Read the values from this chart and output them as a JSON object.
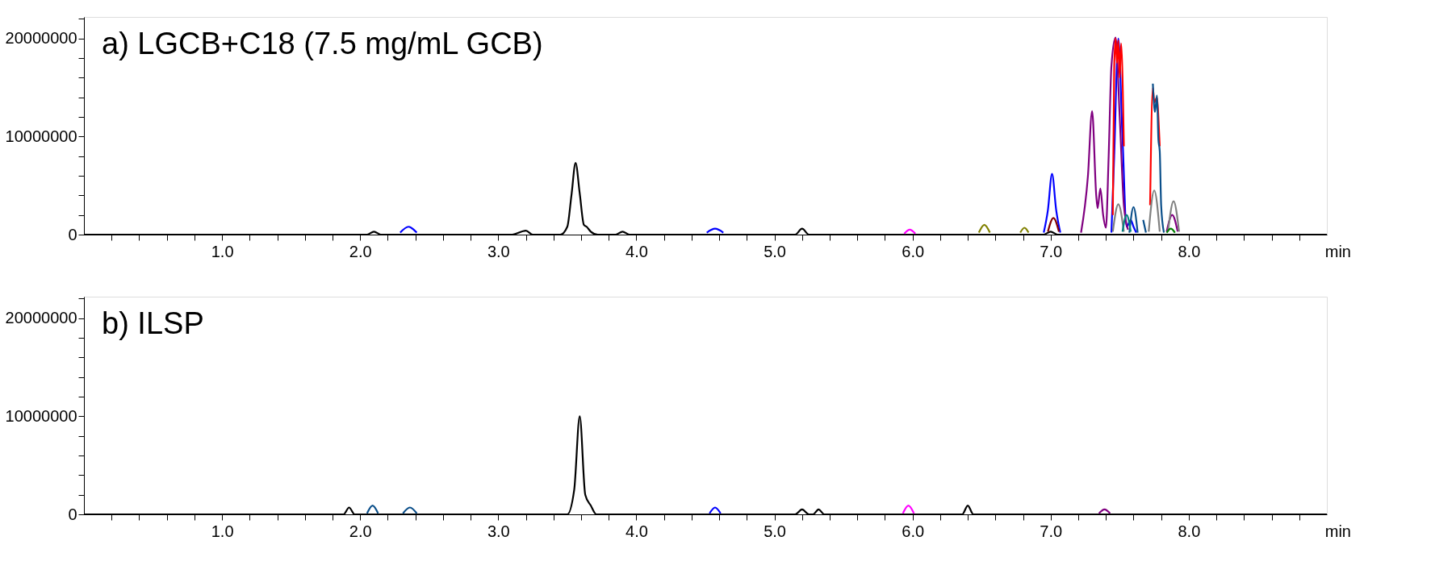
{
  "chart_data": [
    {
      "type": "line",
      "title": "a) LGCB+C18 (7.5 mg/mL GCB)",
      "xlabel": "min",
      "xlim": [
        0,
        9.0
      ],
      "ylim": [
        0,
        22200000
      ],
      "xticks": [
        {
          "value": 0.2,
          "label": null
        },
        {
          "value": 0.4,
          "label": null
        },
        {
          "value": 0.6,
          "label": null
        },
        {
          "value": 0.8,
          "label": null
        },
        {
          "value": 1.0,
          "label": "1.0"
        },
        {
          "value": 1.2,
          "label": null
        },
        {
          "value": 1.4,
          "label": null
        },
        {
          "value": 1.6,
          "label": null
        },
        {
          "value": 1.8,
          "label": null
        },
        {
          "value": 2.0,
          "label": "2.0"
        },
        {
          "value": 2.2,
          "label": null
        },
        {
          "value": 2.4,
          "label": null
        },
        {
          "value": 2.6,
          "label": null
        },
        {
          "value": 2.8,
          "label": null
        },
        {
          "value": 3.0,
          "label": "3.0"
        },
        {
          "value": 3.2,
          "label": null
        },
        {
          "value": 3.4,
          "label": null
        },
        {
          "value": 3.6,
          "label": null
        },
        {
          "value": 3.8,
          "label": null
        },
        {
          "value": 4.0,
          "label": "4.0"
        },
        {
          "value": 4.2,
          "label": null
        },
        {
          "value": 4.4,
          "label": null
        },
        {
          "value": 4.6,
          "label": null
        },
        {
          "value": 4.8,
          "label": null
        },
        {
          "value": 5.0,
          "label": "5.0"
        },
        {
          "value": 5.2,
          "label": null
        },
        {
          "value": 5.4,
          "label": null
        },
        {
          "value": 5.6,
          "label": null
        },
        {
          "value": 5.8,
          "label": null
        },
        {
          "value": 6.0,
          "label": "6.0"
        },
        {
          "value": 6.2,
          "label": null
        },
        {
          "value": 6.4,
          "label": null
        },
        {
          "value": 6.6,
          "label": null
        },
        {
          "value": 6.8,
          "label": null
        },
        {
          "value": 7.0,
          "label": "7.0"
        },
        {
          "value": 7.2,
          "label": null
        },
        {
          "value": 7.4,
          "label": null
        },
        {
          "value": 7.6,
          "label": null
        },
        {
          "value": 7.8,
          "label": null
        },
        {
          "value": 8.0,
          "label": "8.0"
        },
        {
          "value": 8.2,
          "label": null
        },
        {
          "value": 8.4,
          "label": null
        },
        {
          "value": 8.6,
          "label": null
        },
        {
          "value": 8.8,
          "label": null
        }
      ],
      "yticks": [
        0,
        {
          "value": 2000000,
          "label": null
        },
        {
          "value": 4000000,
          "label": null
        },
        {
          "value": 6000000,
          "label": null
        },
        {
          "value": 8000000,
          "label": null
        },
        10000000,
        {
          "value": 12000000,
          "label": null
        },
        {
          "value": 14000000,
          "label": null
        },
        {
          "value": 16000000,
          "label": null
        },
        {
          "value": 18000000,
          "label": null
        },
        20000000,
        {
          "value": 22000000,
          "label": null
        }
      ],
      "grid": false,
      "legend": false,
      "marker": "none",
      "line_style": "solid",
      "series": [
        {
          "color": "#000000",
          "x": [
            0,
            1.95,
            2.05,
            2.1,
            2.15,
            2.3,
            3.1,
            3.2,
            3.25,
            3.45,
            3.5,
            3.53,
            3.56,
            3.59,
            3.62,
            3.64,
            3.67,
            3.72,
            3.85,
            3.9,
            3.95,
            5.1,
            5.15,
            5.2,
            5.25,
            5.35,
            6.95,
            7.0,
            7.05,
            9.0
          ],
          "values": [
            0,
            0,
            0,
            300000,
            0,
            0,
            0,
            400000,
            0,
            0,
            800000,
            4000000,
            7300000,
            4200000,
            1000000,
            800000,
            300000,
            0,
            0,
            300000,
            0,
            0,
            0,
            600000,
            0,
            0,
            0,
            300000,
            0,
            0
          ]
        },
        {
          "color": "#0000ff",
          "x": [
            2.29,
            2.35,
            2.41,
            3.0,
            4.51,
            4.57,
            4.63,
            5.0,
            6.95,
            6.98,
            7.01,
            7.04,
            7.07,
            7.2,
            7.44,
            7.46,
            7.49,
            7.52,
            7.55,
            7.58,
            7.6,
            7.62
          ],
          "values": [
            200000,
            800000,
            200000,
            null,
            200000,
            600000,
            200000,
            null,
            200000,
            2500000,
            6200000,
            2500000,
            200000,
            null,
            200000,
            8000000,
            20000000,
            10000000,
            800000,
            1500000,
            800000,
            200000
          ]
        },
        {
          "color": "#800000",
          "x": [
            6.98,
            7.02,
            7.06
          ],
          "values": [
            300000,
            1700000,
            300000
          ]
        },
        {
          "color": "#800080",
          "x": [
            7.22,
            7.27,
            7.3,
            7.33,
            7.34,
            7.36,
            7.38,
            7.4,
            7.42,
            7.44,
            7.47,
            7.5,
            7.53,
            7.56,
            7.6,
            7.84,
            7.88,
            7.92
          ],
          "values": [
            200000,
            6000000,
            12600000,
            4000000,
            2700000,
            4700000,
            2000000,
            700000,
            8000000,
            17200000,
            20100000,
            12000000,
            3000000,
            500000,
            null,
            300000,
            2000000,
            300000
          ]
        },
        {
          "color": "#ff0000",
          "x": [
            7.45,
            7.46,
            7.47,
            7.48,
            7.49,
            7.5,
            7.51,
            7.53,
            7.6,
            7.72,
            7.74,
            7.75,
            7.77,
            7.78,
            7.79
          ],
          "values": [
            2000000,
            17000000,
            20000000,
            17500000,
            19800000,
            16000000,
            19500000,
            9000000,
            null,
            3000000,
            15000000,
            13500000,
            14000000,
            12000000,
            9000000
          ]
        },
        {
          "color": "#0b4f8a",
          "x": [
            7.57,
            7.6,
            7.63,
            7.65,
            7.67,
            7.69,
            7.71,
            7.74,
            7.755,
            7.77,
            7.78,
            7.79,
            7.8,
            7.82
          ],
          "values": [
            200000,
            2800000,
            200000,
            null,
            1500000,
            200000,
            null,
            15400000,
            12500000,
            14200000,
            9700000,
            8500000,
            3000000,
            200000
          ]
        },
        {
          "color": "#808080",
          "x": [
            7.45,
            7.49,
            7.53,
            7.6,
            7.71,
            7.75,
            7.79,
            7.82,
            7.85,
            7.89,
            7.93
          ],
          "values": [
            300000,
            3100000,
            300000,
            null,
            300000,
            4500000,
            300000,
            null,
            300000,
            3400000,
            300000
          ]
        },
        {
          "color": "#008080",
          "x": [
            7.52,
            7.55,
            7.58
          ],
          "values": [
            300000,
            2000000,
            300000
          ]
        },
        {
          "color": "#808000",
          "x": [
            6.48,
            6.52,
            6.56,
            6.7,
            6.78,
            6.81,
            6.84
          ],
          "values": [
            200000,
            1000000,
            200000,
            null,
            200000,
            700000,
            200000
          ]
        },
        {
          "color": "#008000",
          "x": [
            7.84,
            7.87,
            7.9
          ],
          "values": [
            200000,
            600000,
            200000
          ]
        },
        {
          "color": "#ff00ff",
          "x": [
            5.94,
            5.98,
            6.02
          ],
          "values": [
            100000,
            500000,
            100000
          ]
        }
      ]
    },
    {
      "type": "line",
      "title": "b) ILSP",
      "xlabel": "min",
      "xlim": [
        0,
        9.0
      ],
      "ylim": [
        0,
        22200000
      ],
      "xticks": [
        {
          "value": 0.2,
          "label": null
        },
        {
          "value": 0.4,
          "label": null
        },
        {
          "value": 0.6,
          "label": null
        },
        {
          "value": 0.8,
          "label": null
        },
        {
          "value": 1.0,
          "label": "1.0"
        },
        {
          "value": 1.2,
          "label": null
        },
        {
          "value": 1.4,
          "label": null
        },
        {
          "value": 1.6,
          "label": null
        },
        {
          "value": 1.8,
          "label": null
        },
        {
          "value": 2.0,
          "label": "2.0"
        },
        {
          "value": 2.2,
          "label": null
        },
        {
          "value": 2.4,
          "label": null
        },
        {
          "value": 2.6,
          "label": null
        },
        {
          "value": 2.8,
          "label": null
        },
        {
          "value": 3.0,
          "label": "3.0"
        },
        {
          "value": 3.2,
          "label": null
        },
        {
          "value": 3.4,
          "label": null
        },
        {
          "value": 3.6,
          "label": null
        },
        {
          "value": 3.8,
          "label": null
        },
        {
          "value": 4.0,
          "label": "4.0"
        },
        {
          "value": 4.2,
          "label": null
        },
        {
          "value": 4.4,
          "label": null
        },
        {
          "value": 4.6,
          "label": null
        },
        {
          "value": 4.8,
          "label": null
        },
        {
          "value": 5.0,
          "label": "5.0"
        },
        {
          "value": 5.2,
          "label": null
        },
        {
          "value": 5.4,
          "label": null
        },
        {
          "value": 5.6,
          "label": null
        },
        {
          "value": 5.8,
          "label": null
        },
        {
          "value": 6.0,
          "label": "6.0"
        },
        {
          "value": 6.2,
          "label": null
        },
        {
          "value": 6.4,
          "label": null
        },
        {
          "value": 6.6,
          "label": null
        },
        {
          "value": 6.8,
          "label": null
        },
        {
          "value": 7.0,
          "label": "7.0"
        },
        {
          "value": 7.2,
          "label": null
        },
        {
          "value": 7.4,
          "label": null
        },
        {
          "value": 7.6,
          "label": null
        },
        {
          "value": 7.8,
          "label": null
        },
        {
          "value": 8.0,
          "label": "8.0"
        },
        {
          "value": 8.2,
          "label": null
        },
        {
          "value": 8.4,
          "label": null
        },
        {
          "value": 8.6,
          "label": null
        },
        {
          "value": 8.8,
          "label": null
        }
      ],
      "yticks": [
        0,
        {
          "value": 2000000,
          "label": null
        },
        {
          "value": 4000000,
          "label": null
        },
        {
          "value": 6000000,
          "label": null
        },
        {
          "value": 8000000,
          "label": null
        },
        10000000,
        {
          "value": 12000000,
          "label": null
        },
        {
          "value": 14000000,
          "label": null
        },
        {
          "value": 16000000,
          "label": null
        },
        {
          "value": 18000000,
          "label": null
        },
        20000000,
        {
          "value": 22000000,
          "label": null
        }
      ],
      "grid": false,
      "legend": false,
      "marker": "none",
      "line_style": "solid",
      "series": [
        {
          "color": "#000000",
          "x": [
            0,
            1.88,
            1.92,
            1.96,
            3.5,
            3.55,
            3.59,
            3.63,
            3.67,
            3.71,
            5.15,
            5.2,
            5.25,
            5.28,
            5.32,
            5.36,
            6.36,
            6.4,
            6.44,
            9.0
          ],
          "values": [
            0,
            0,
            700000,
            0,
            0,
            2500000,
            10000000,
            2000000,
            900000,
            0,
            0,
            500000,
            0,
            0,
            500000,
            0,
            0,
            900000,
            0,
            0
          ]
        },
        {
          "color": "#0b4f8a",
          "x": [
            2.05,
            2.09,
            2.13,
            2.2,
            2.31,
            2.36,
            2.41
          ],
          "values": [
            100000,
            900000,
            100000,
            null,
            100000,
            700000,
            100000
          ]
        },
        {
          "color": "#0000ff",
          "x": [
            4.53,
            4.57,
            4.61
          ],
          "values": [
            100000,
            700000,
            100000
          ]
        },
        {
          "color": "#ff00ff",
          "x": [
            5.93,
            5.97,
            6.01
          ],
          "values": [
            100000,
            900000,
            100000
          ]
        },
        {
          "color": "#800080",
          "x": [
            7.35,
            7.39,
            7.43
          ],
          "values": [
            100000,
            500000,
            100000
          ]
        }
      ]
    }
  ]
}
